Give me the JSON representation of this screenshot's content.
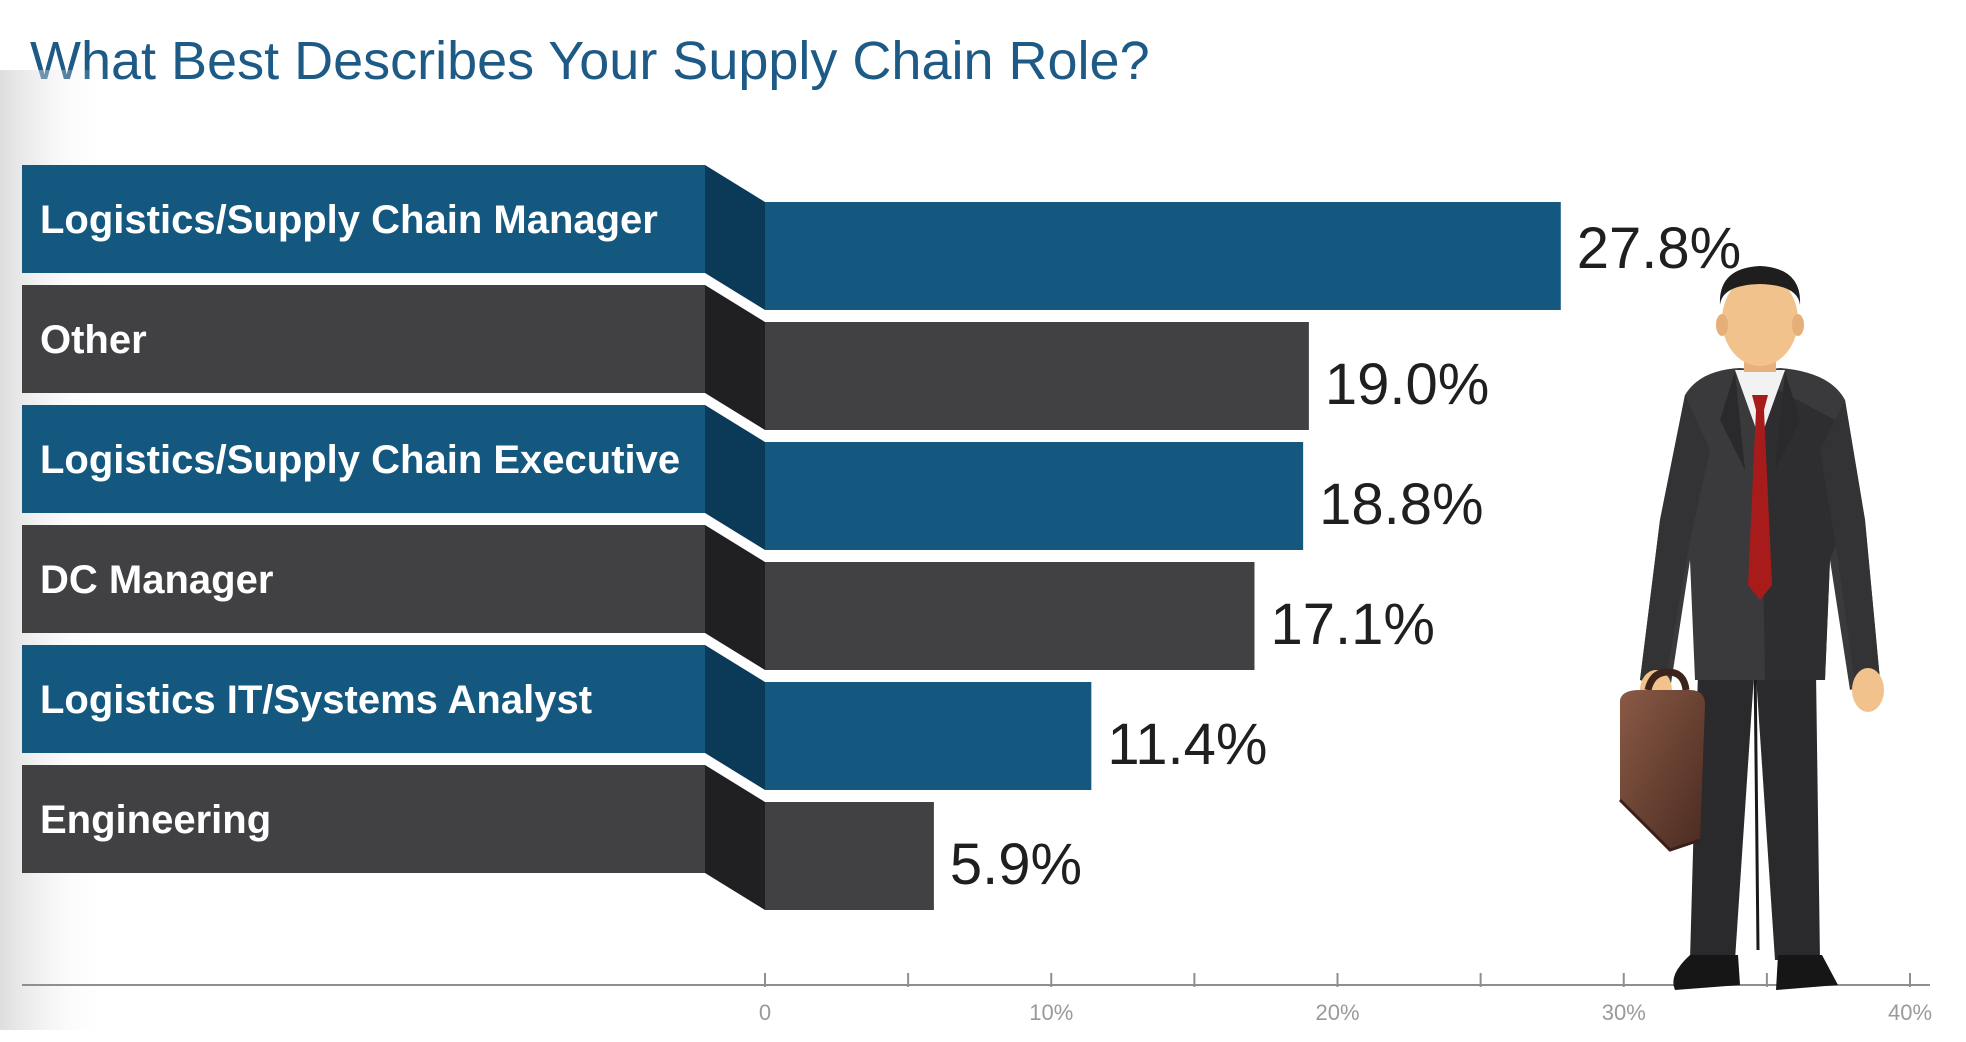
{
  "chart_data": {
    "type": "bar",
    "orientation": "horizontal",
    "title": "What Best Describes Your Supply Chain Role?",
    "categories": [
      "Logistics/Supply Chain Manager",
      "Other",
      "Logistics/Supply Chain Executive",
      "DC Manager",
      "Logistics IT/Systems Analyst",
      "Engineering"
    ],
    "values": [
      27.8,
      19.0,
      18.8,
      17.1,
      11.4,
      5.9
    ],
    "value_labels": [
      "27.8%",
      "19.0%",
      "18.8%",
      "17.1%",
      "11.4%",
      "5.9%"
    ],
    "xlim": [
      0,
      40
    ],
    "ticks": [
      0,
      10,
      20,
      30,
      40
    ],
    "tick_labels": [
      "0",
      "10%",
      "20%",
      "30%",
      "40%"
    ],
    "grid": false,
    "colors": {
      "blue": "#14577f",
      "blue_dark": "#0b3a58",
      "gray": "#414143",
      "gray_dark": "#202022",
      "title": "#1d5a86",
      "axis": "#8f8f8f"
    },
    "bar_color_pattern": [
      "blue",
      "gray",
      "blue",
      "gray",
      "blue",
      "gray"
    ]
  },
  "illustration": {
    "figure": "businessman-with-briefcase"
  }
}
